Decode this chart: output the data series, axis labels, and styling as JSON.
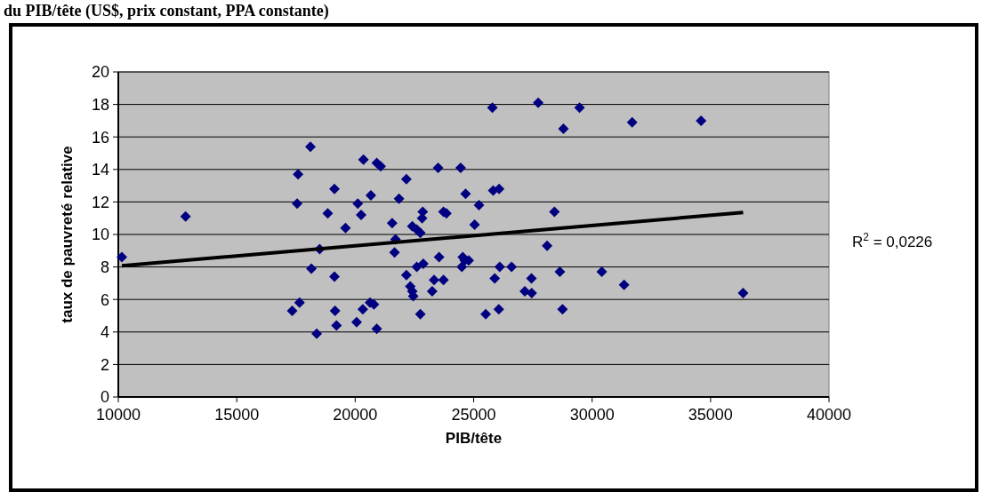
{
  "chart_data": {
    "type": "scatter",
    "title": "du PIB/tête (US$, prix constant, PPA constante)",
    "xlabel": "PIB/tête",
    "ylabel": "taux de pauvreté relative",
    "annotations": [
      "R$^{2}$ = 0,0226"
    ],
    "xlim": [
      10000,
      40000
    ],
    "xticks": [
      10000,
      15000,
      20000,
      25000,
      30000,
      35000,
      40000
    ],
    "ylim": [
      0,
      20
    ],
    "yticks": [
      0,
      2,
      4,
      6,
      8,
      10,
      12,
      14,
      16,
      18,
      20
    ],
    "grid": "y",
    "marker": "diamond",
    "series": [
      {
        "color": "#000080",
        "x": [
          10150,
          12840,
          18110,
          20350,
          17590,
          19125,
          17550,
          18840,
          20110,
          20250,
          19590,
          20660,
          18500,
          18150,
          19125,
          17650,
          17340,
          19150,
          19210,
          18375,
          20060,
          20320,
          20625,
          20790,
          20910,
          20910,
          21075,
          22160,
          23500,
          24450,
          21850,
          21560,
          21700,
          22410,
          22600,
          22750,
          22850,
          22825,
          23725,
          23850,
          24660,
          25225,
          25040,
          25825,
          26075,
          25790,
          27725,
          29470,
          28790,
          28410,
          28100,
          21660,
          23540,
          24540,
          24625,
          24790,
          24500,
          22600,
          22875,
          22160,
          23330,
          23725,
          22325,
          22410,
          22450,
          23250,
          26100,
          26600,
          25890,
          27440,
          27160,
          27450,
          28640,
          22750,
          25510,
          26060,
          28750,
          31690,
          34600,
          30410,
          31350,
          36375
        ],
        "values": [
          8.6,
          11.1,
          15.4,
          14.6,
          13.7,
          12.8,
          11.9,
          11.3,
          11.9,
          11.2,
          10.4,
          12.4,
          9.1,
          7.9,
          7.4,
          5.8,
          5.3,
          5.3,
          4.4,
          3.9,
          4.6,
          5.4,
          5.8,
          5.7,
          4.2,
          14.4,
          14.2,
          13.4,
          14.1,
          14.1,
          12.2,
          10.7,
          9.7,
          10.5,
          10.3,
          10.1,
          11.4,
          11.0,
          11.4,
          11.3,
          12.5,
          11.8,
          10.6,
          12.7,
          12.8,
          17.8,
          18.1,
          17.8,
          16.5,
          11.4,
          9.3,
          8.9,
          8.6,
          8.6,
          8.4,
          8.4,
          8.0,
          8.0,
          8.2,
          7.5,
          7.2,
          7.2,
          6.8,
          6.5,
          6.2,
          6.5,
          8.0,
          8.0,
          7.3,
          7.3,
          6.5,
          6.4,
          7.7,
          5.1,
          5.1,
          5.4,
          5.4,
          16.9,
          17.0,
          7.7,
          6.9,
          6.4
        ]
      },
      {
        "type": "line",
        "color": "#000000",
        "marker": "none",
        "x": [
          10150,
          36375
        ],
        "values": [
          8.07,
          11.35
        ]
      }
    ]
  }
}
